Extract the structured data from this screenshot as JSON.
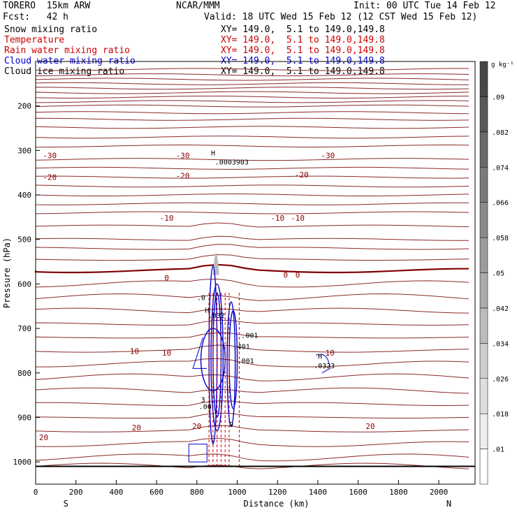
{
  "header": {
    "model": "TORERO  15km ARW",
    "org": "NCAR/MMM",
    "init": "Init: 00 UTC Tue 14 Feb 12",
    "fcst": "Fcst:   42 h",
    "valid": "Valid: 18 UTC Wed 15 Feb 12 (12 CST Wed 15 Feb 12)"
  },
  "fields": [
    {
      "name": "Snow mixing ratio",
      "xy": "",
      "color": "#000000"
    },
    {
      "name": "Temperature",
      "xy": "XY= 149.0,  5.1 to 149.0,149.8",
      "color": "#cc0000"
    },
    {
      "name": "Rain water mixing ratio",
      "xy": "XY= 149.0,  5.1 to 149.0,149.8",
      "color": "#cc0000"
    },
    {
      "name": "Cloud water mixing ratio",
      "xy": "XY= 149.0,  5.1 to 149.0,149.8",
      "color": "#0000cc"
    },
    {
      "name": "Cloud ice mixing ratio",
      "xy": "XY= 149.0,  5.1 to 149.0,149.8",
      "color": "#000000"
    }
  ],
  "first_xy": "XY= 149.0,  5.1 to 149.0,149.8",
  "chart_data": {
    "type": "contour",
    "xlabel": "Distance (km)",
    "ylabel": "Pressure (hPa)",
    "xlim": [
      0,
      2180
    ],
    "ylim": [
      1050,
      100
    ],
    "x_ticks": [
      0,
      200,
      400,
      600,
      800,
      1000,
      1200,
      1400,
      1600,
      1800,
      2000
    ],
    "y_ticks": [
      200,
      300,
      400,
      500,
      600,
      700,
      800,
      900,
      1000
    ],
    "x_end_labels": {
      "left": "S",
      "right": "N"
    },
    "temperature_labels": [
      {
        "text": "-30",
        "x": 70,
        "p": 311
      },
      {
        "text": "-30",
        "x": 730,
        "p": 311
      },
      {
        "text": "-30",
        "x": 1450,
        "p": 311
      },
      {
        "text": "-20",
        "x": 70,
        "p": 360
      },
      {
        "text": "-20",
        "x": 730,
        "p": 357
      },
      {
        "text": "-20",
        "x": 1320,
        "p": 354
      },
      {
        "text": "-10",
        "x": 650,
        "p": 452
      },
      {
        "text": "-10",
        "x": 1200,
        "p": 452
      },
      {
        "text": "-10",
        "x": 1300,
        "p": 452
      },
      {
        "text": "0",
        "x": 650,
        "p": 586
      },
      {
        "text": "0",
        "x": 1240,
        "p": 580
      },
      {
        "text": "0",
        "x": 1300,
        "p": 580
      },
      {
        "text": "10",
        "x": 490,
        "p": 751
      },
      {
        "text": "10",
        "x": 650,
        "p": 755
      },
      {
        "text": "10",
        "x": 1460,
        "p": 755
      },
      {
        "text": "20",
        "x": 500,
        "p": 923
      },
      {
        "text": "20",
        "x": 800,
        "p": 920
      },
      {
        "text": "20",
        "x": 1660,
        "p": 920
      },
      {
        "text": "20",
        "x": 40,
        "p": 945
      }
    ],
    "annotations": [
      {
        "text": "H",
        "x": 870,
        "p": 305
      },
      {
        "text": ".0003903",
        "x": 890,
        "p": 325
      },
      {
        "text": "H",
        "x": 1400,
        "p": 762
      },
      {
        "text": ".0323",
        "x": 1380,
        "p": 783
      },
      {
        "text": ".001",
        "x": 1020,
        "p": 715
      },
      {
        "text": ".001",
        "x": 1000,
        "p": 772
      },
      {
        "text": ".401",
        "x": 980,
        "p": 740
      },
      {
        "text": "H",
        "x": 840,
        "p": 658
      },
      {
        "text": ".0",
        "x": 800,
        "p": 630
      },
      {
        "text": ".032",
        "x": 855,
        "p": 670
      },
      {
        "text": ".00",
        "x": 810,
        "p": 875
      },
      {
        "text": "3",
        "x": 820,
        "p": 859
      },
      {
        "text": "9",
        "x": 960,
        "p": 915
      }
    ],
    "colorbar": {
      "unit": "g kg⁻¹",
      "ticks": [
        ".01",
        ".018",
        ".026",
        ".034",
        ".042",
        ".05",
        ".058",
        ".066",
        ".074",
        ".082",
        ".09"
      ]
    },
    "grid": false
  }
}
